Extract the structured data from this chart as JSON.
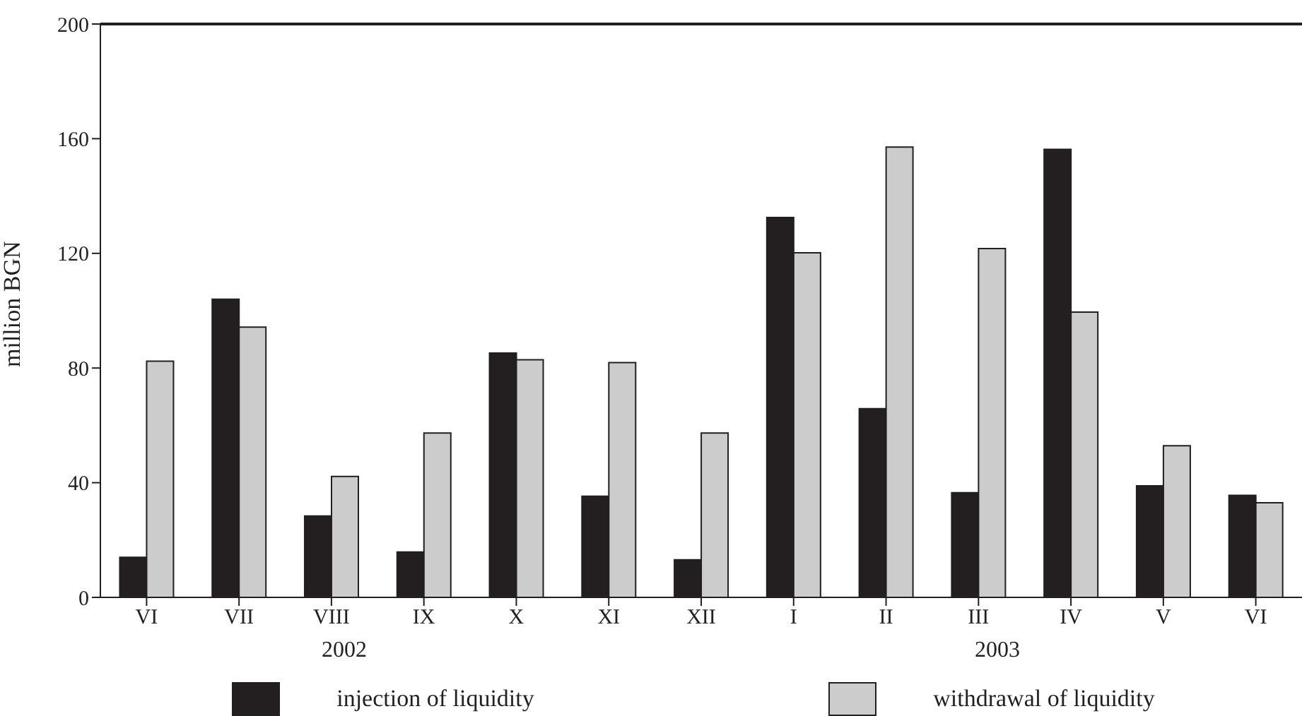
{
  "chart_data": {
    "type": "bar",
    "ylabel": "million BGN",
    "categories": [
      "VI",
      "VII",
      "VIII",
      "IX",
      "X",
      "XI",
      "XII",
      "I",
      "II",
      "III",
      "IV",
      "V",
      "VI"
    ],
    "series": [
      {
        "name": "injection of liquidity",
        "color": "#231f20",
        "values": [
          14,
          104,
          28.4,
          15.8,
          85.2,
          35.3,
          13.1,
          132.5,
          65.8,
          36.5,
          156.3,
          38.9,
          35.6
        ]
      },
      {
        "name": "withdrawal of liquidity",
        "color": "#cccccc",
        "values": [
          82.4,
          94.3,
          42.2,
          57.3,
          82.9,
          81.9,
          57.3,
          120.2,
          157.1,
          121.7,
          99.5,
          52.9,
          33
        ]
      }
    ],
    "ylim": [
      0,
      200
    ],
    "yticks": [
      0,
      40,
      80,
      120,
      160,
      200
    ],
    "legend": "bottom",
    "annotations": [
      "2002",
      "2003"
    ]
  }
}
